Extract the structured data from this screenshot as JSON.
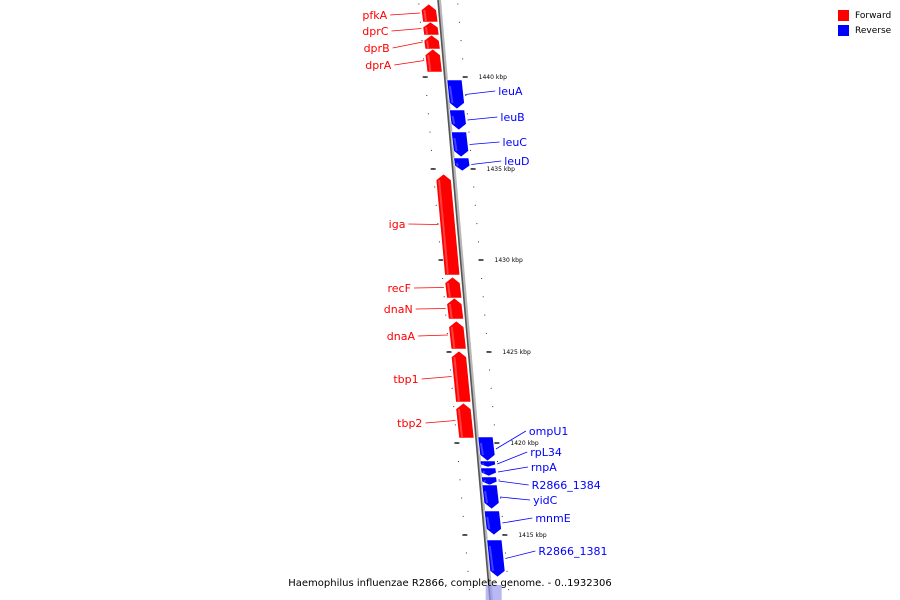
{
  "caption": "Haemophilus influenzae R2866, complete genome. - 0..1932306",
  "legend": [
    {
      "label": "Forward",
      "color": "#ff0000"
    },
    {
      "label": "Reverse",
      "color": "#0000ff"
    }
  ],
  "scale_unit": "kbp",
  "scale_labels": [
    "1440 kbp",
    "1435 kbp",
    "1430 kbp",
    "1425 kbp",
    "1420 kbp",
    "1415 kbp"
  ],
  "genes": [
    {
      "name": "pfkA",
      "strand": "forward"
    },
    {
      "name": "dprC",
      "strand": "forward"
    },
    {
      "name": "dprB",
      "strand": "forward"
    },
    {
      "name": "dprA",
      "strand": "forward"
    },
    {
      "name": "leuA",
      "strand": "reverse"
    },
    {
      "name": "leuB",
      "strand": "reverse"
    },
    {
      "name": "leuC",
      "strand": "reverse"
    },
    {
      "name": "leuD",
      "strand": "reverse"
    },
    {
      "name": "iga",
      "strand": "forward"
    },
    {
      "name": "recF",
      "strand": "forward"
    },
    {
      "name": "dnaN",
      "strand": "forward"
    },
    {
      "name": "dnaA",
      "strand": "forward"
    },
    {
      "name": "tbp1",
      "strand": "forward"
    },
    {
      "name": "tbp2",
      "strand": "forward"
    },
    {
      "name": "ompU1",
      "strand": "reverse"
    },
    {
      "name": "rpL34",
      "strand": "reverse"
    },
    {
      "name": "rnpA",
      "strand": "reverse"
    },
    {
      "name": "R2866_1384",
      "strand": "reverse"
    },
    {
      "name": "yidC",
      "strand": "reverse"
    },
    {
      "name": "mnmE",
      "strand": "reverse"
    },
    {
      "name": "R2866_1381",
      "strand": "reverse"
    }
  ]
}
